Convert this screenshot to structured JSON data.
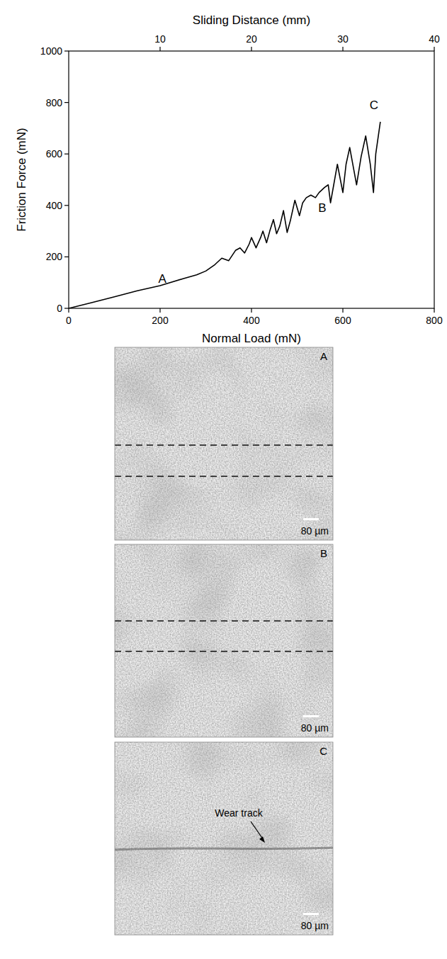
{
  "chart_data": {
    "type": "line",
    "xlabel": "Normal Load (mN)",
    "ylabel": "Friction Force (mN)",
    "x2label": "Sliding Distance (mm)",
    "x": [
      0,
      50,
      100,
      150,
      200,
      250,
      280,
      300,
      320,
      335,
      350,
      365,
      375,
      385,
      395,
      400,
      410,
      420,
      425,
      433,
      440,
      448,
      455,
      462,
      470,
      478,
      485,
      495,
      505,
      512,
      520,
      530,
      540,
      548,
      560,
      568,
      573,
      580,
      588,
      600,
      607,
      615,
      630,
      640,
      650,
      660,
      667,
      672,
      682
    ],
    "values": [
      0,
      22,
      45,
      68,
      88,
      115,
      130,
      145,
      170,
      195,
      185,
      225,
      235,
      215,
      250,
      275,
      235,
      275,
      300,
      255,
      300,
      345,
      290,
      320,
      380,
      295,
      340,
      420,
      360,
      410,
      430,
      440,
      430,
      450,
      470,
      480,
      410,
      480,
      560,
      450,
      560,
      625,
      480,
      590,
      670,
      560,
      450,
      600,
      725
    ],
    "color": "#000000",
    "xlim": [
      0,
      800
    ],
    "xticks": [
      0,
      200,
      400,
      600,
      800
    ],
    "ylim": [
      0,
      1000
    ],
    "yticks": [
      0,
      200,
      400,
      600,
      800,
      1000
    ],
    "x2lim": [
      0,
      40
    ],
    "x2ticks": [
      10,
      20,
      30,
      40
    ],
    "grid": false,
    "annotations": [
      {
        "text": "A",
        "x": 205,
        "y": 115
      },
      {
        "text": "B",
        "x": 555,
        "y": 390
      },
      {
        "text": "C",
        "x": 668,
        "y": 790
      }
    ]
  },
  "panels": [
    {
      "label": "A",
      "scale_bar": "80 µm",
      "dashed_lines": true
    },
    {
      "label": "B",
      "scale_bar": "80 µm",
      "dashed_lines": true
    },
    {
      "label": "C",
      "scale_bar": "80 µm",
      "dashed_lines": false,
      "annotation": "Wear track"
    }
  ]
}
